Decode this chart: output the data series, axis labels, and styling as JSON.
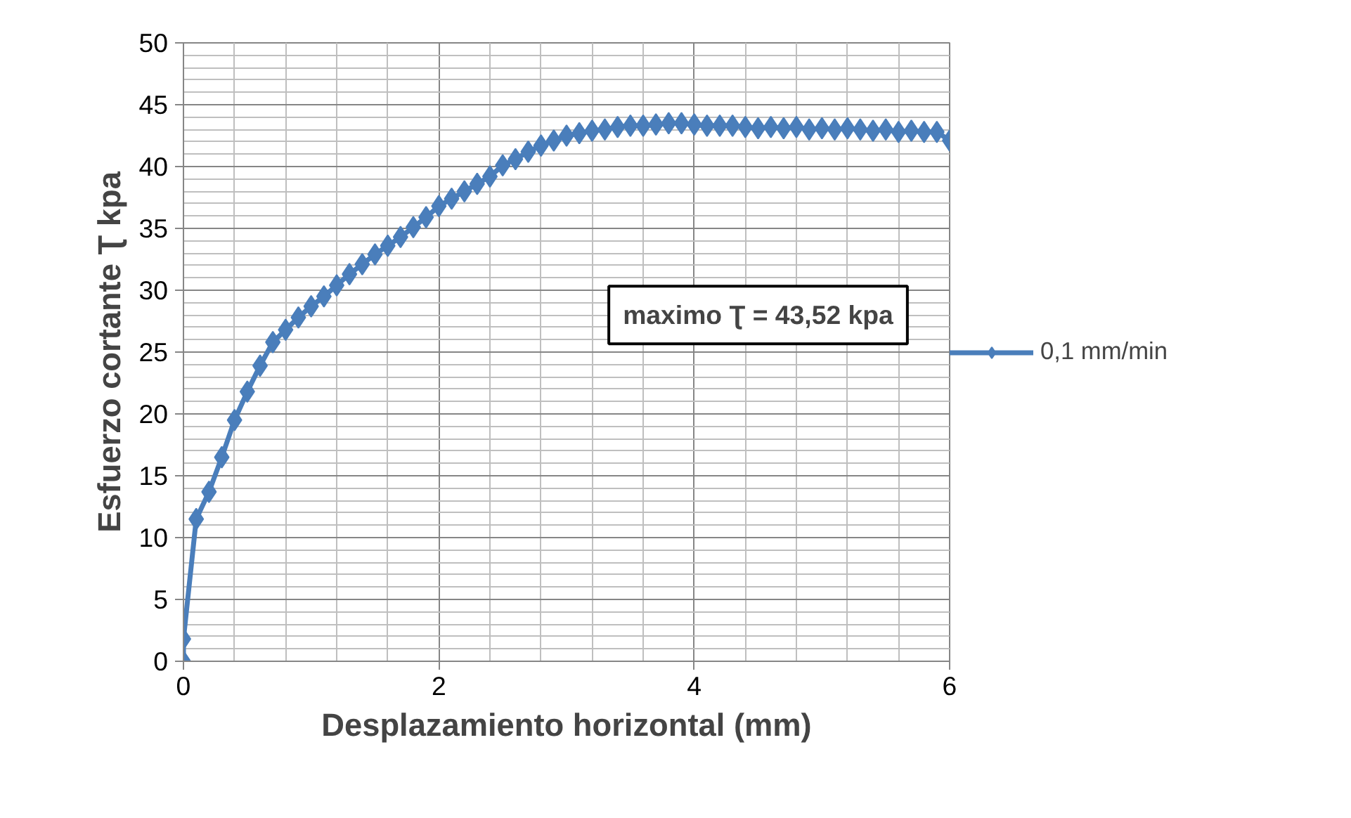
{
  "chart_data": {
    "type": "line",
    "xlabel": "Desplazamiento horizontal (mm)",
    "ylabel": "Esfuerzo cortante Ʈ kpa",
    "annotations": [
      "maximo Ʈ = 43,52 kpa"
    ],
    "xlim": [
      0,
      6
    ],
    "xticks": [
      0,
      2,
      4,
      6
    ],
    "ylim": [
      0,
      50
    ],
    "yticks": [
      0,
      5,
      10,
      15,
      20,
      25,
      30,
      35,
      40,
      45,
      50
    ],
    "grid": true,
    "legend": "right",
    "marker": "diamond",
    "line_style": "solid",
    "series": [
      {
        "name": "0,1 mm/min",
        "color": "#4a7ebb",
        "x": [
          0,
          0,
          0.1,
          0.2,
          0.3,
          0.4,
          0.5,
          0.6,
          0.7,
          0.8,
          0.9,
          1.0,
          1.1,
          1.2,
          1.3,
          1.4,
          1.5,
          1.6,
          1.7,
          1.8,
          1.9,
          2.0,
          2.1,
          2.2,
          2.3,
          2.4,
          2.5,
          2.6,
          2.7,
          2.8,
          2.9,
          3.0,
          3.1,
          3.2,
          3.3,
          3.4,
          3.5,
          3.6,
          3.7,
          3.8,
          3.9,
          4.0,
          4.1,
          4.2,
          4.3,
          4.4,
          4.5,
          4.6,
          4.7,
          4.8,
          4.9,
          5.0,
          5.1,
          5.2,
          5.3,
          5.4,
          5.5,
          5.6,
          5.7,
          5.8,
          5.9,
          6.0
        ],
        "values": [
          0,
          1.8,
          11.5,
          13.7,
          16.5,
          19.5,
          21.8,
          23.9,
          25.8,
          26.8,
          27.8,
          28.7,
          29.5,
          30.4,
          31.3,
          32.1,
          32.9,
          33.6,
          34.3,
          35.1,
          35.9,
          36.8,
          37.4,
          38.0,
          38.6,
          39.2,
          40.1,
          40.6,
          41.2,
          41.7,
          42.1,
          42.5,
          42.7,
          42.9,
          43.0,
          43.2,
          43.3,
          43.3,
          43.4,
          43.5,
          43.5,
          43.4,
          43.3,
          43.3,
          43.3,
          43.2,
          43.1,
          43.2,
          43.1,
          43.2,
          43.0,
          43.1,
          43.0,
          43.1,
          43.0,
          42.9,
          43.0,
          42.8,
          42.9,
          42.8,
          42.8,
          42.1
        ]
      }
    ]
  }
}
